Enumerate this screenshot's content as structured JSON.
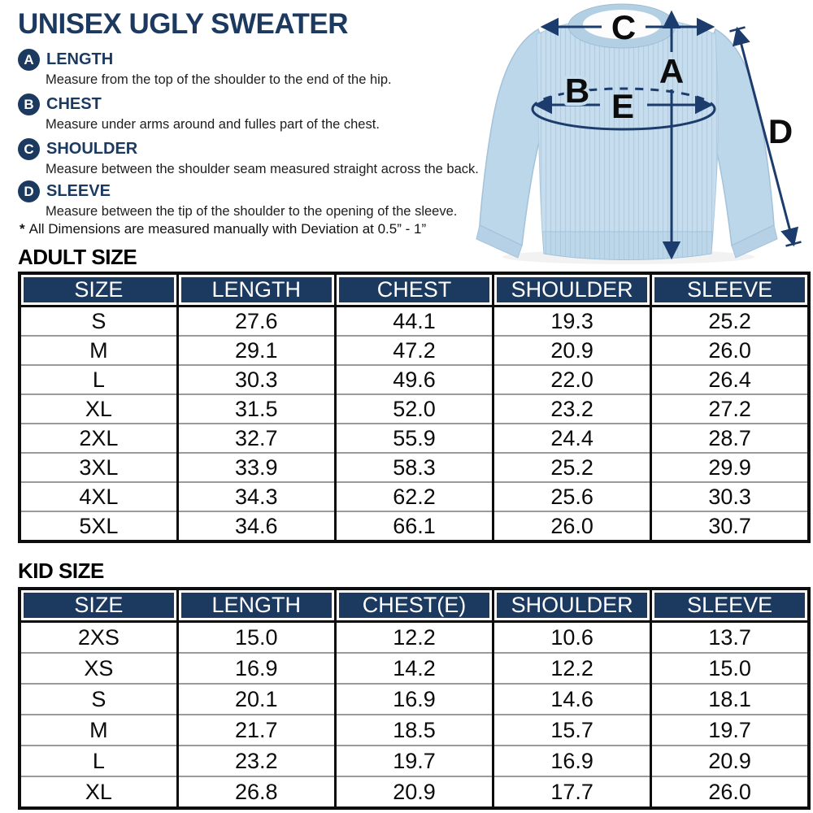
{
  "page": {
    "title": "UNISEX UGLY SWEATER",
    "note_star": "*",
    "note_text": "All Dimensions are measured manually with Deviation at 0.5” - 1”"
  },
  "measurements": [
    {
      "key": "A",
      "label": "LENGTH",
      "desc": "Measure from the top of the shoulder to the end of the hip."
    },
    {
      "key": "B",
      "label": "CHEST",
      "desc": "Measure under arms around and fulles part of the chest."
    },
    {
      "key": "C",
      "label": "SHOULDER",
      "desc": "Measure between the shoulder seam measured straight across the back."
    },
    {
      "key": "D",
      "label": "SLEEVE",
      "desc": "Measure between the tip of the shoulder to the opening of the sleeve."
    }
  ],
  "diagram": {
    "labels": [
      "A",
      "B",
      "C",
      "D",
      "E"
    ]
  },
  "adult": {
    "heading": "ADULT SIZE",
    "columns": [
      "SIZE",
      "LENGTH",
      "CHEST",
      "SHOULDER",
      "SLEEVE"
    ],
    "rows": [
      [
        "S",
        "27.6",
        "44.1",
        "19.3",
        "25.2"
      ],
      [
        "M",
        "29.1",
        "47.2",
        "20.9",
        "26.0"
      ],
      [
        "L",
        "30.3",
        "49.6",
        "22.0",
        "26.4"
      ],
      [
        "XL",
        "31.5",
        "52.0",
        "23.2",
        "27.2"
      ],
      [
        "2XL",
        "32.7",
        "55.9",
        "24.4",
        "28.7"
      ],
      [
        "3XL",
        "33.9",
        "58.3",
        "25.2",
        "29.9"
      ],
      [
        "4XL",
        "34.3",
        "62.2",
        "25.6",
        "30.3"
      ],
      [
        "5XL",
        "34.6",
        "66.1",
        "26.0",
        "30.7"
      ]
    ]
  },
  "kid": {
    "heading": "KID SIZE",
    "columns": [
      "SIZE",
      "LENGTH",
      "CHEST(E)",
      "SHOULDER",
      "SLEEVE"
    ],
    "rows": [
      [
        "2XS",
        "15.0",
        "12.2",
        "10.6",
        "13.7"
      ],
      [
        "XS",
        "16.9",
        "14.2",
        "12.2",
        "15.0"
      ],
      [
        "S",
        "20.1",
        "16.9",
        "14.6",
        "18.1"
      ],
      [
        "M",
        "21.7",
        "18.5",
        "15.7",
        "19.7"
      ],
      [
        "L",
        "23.2",
        "19.7",
        "16.9",
        "20.9"
      ],
      [
        "XL",
        "26.8",
        "20.9",
        "17.7",
        "26.0"
      ]
    ]
  },
  "colors": {
    "navy": "#1c3a5f",
    "arrow_navy": "#1d3c6e",
    "table_border": "#0d0d0d",
    "row_separator": "#9a9a9a",
    "sweater_blue": "#c6dded",
    "header_text": "#ffffff"
  }
}
